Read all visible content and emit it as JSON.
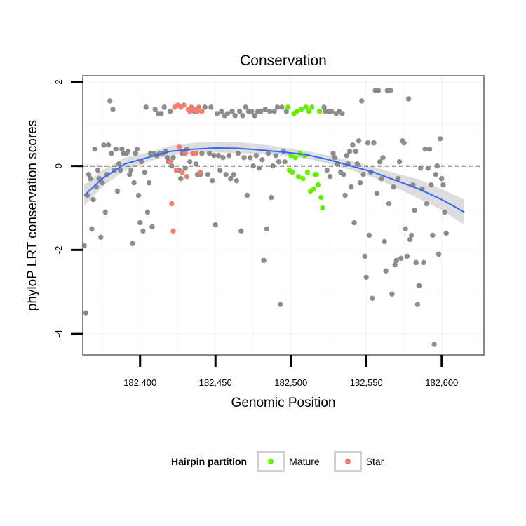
{
  "chart_data": {
    "type": "scatter",
    "title": "Conservation",
    "xlabel": "Genomic Position",
    "ylabel": "phyloP LRT conservation scores",
    "xlim": [
      182362,
      182628
    ],
    "ylim": [
      -4.5,
      2.15
    ],
    "x_ticks": [
      182400,
      182450,
      182500,
      182550,
      182600
    ],
    "x_tick_labels": [
      "182,400",
      "182,450",
      "182,500",
      "182,550",
      "182,600"
    ],
    "y_ticks": [
      2,
      0,
      -2,
      -4
    ],
    "y_tick_labels": [
      "2",
      "0",
      "-2",
      "-4"
    ],
    "reference_line": {
      "y": 0,
      "style": "dashed"
    },
    "grid": true,
    "legend": {
      "title": "Hairpin partition",
      "placement": "bottom",
      "entries": [
        {
          "label": "Mature",
          "color": "#66ee00"
        },
        {
          "label": "Star",
          "color": "#f07f72"
        }
      ]
    },
    "colors": {
      "other": "#8c8c8c",
      "mature": "#66ee00",
      "star": "#f07f72",
      "smooth": "#3366ff",
      "band": "#d9d9d9"
    },
    "series": [
      {
        "name": "Other",
        "points": [
          [
            182363,
            -1.9
          ],
          [
            182364,
            -3.5
          ],
          [
            182365,
            -0.7
          ],
          [
            182366,
            -0.2
          ],
          [
            182367,
            -0.3
          ],
          [
            182368,
            -1.5
          ],
          [
            182369,
            -0.8
          ],
          [
            182370,
            0.4
          ],
          [
            182371,
            -0.5
          ],
          [
            182372,
            -0.1
          ],
          [
            182373,
            -0.3
          ],
          [
            182374,
            -1.7
          ],
          [
            182375,
            -0.4
          ],
          [
            182376,
            0.5
          ],
          [
            182377,
            -1.1
          ],
          [
            182378,
            -0.2
          ],
          [
            182379,
            0.5
          ],
          [
            182380,
            1.55
          ],
          [
            182381,
            0.3
          ],
          [
            182382,
            1.35
          ],
          [
            182383,
            -0.1
          ],
          [
            182384,
            0.4
          ],
          [
            182385,
            -0.6
          ],
          [
            182386,
            0.05
          ],
          [
            182387,
            -0.1
          ],
          [
            182388,
            0.4
          ],
          [
            182389,
            0.3
          ],
          [
            182390,
            0.3
          ],
          [
            182391,
            0.3
          ],
          [
            182392,
            0.35
          ],
          [
            182393,
            -0.2
          ],
          [
            182394,
            -0.1
          ],
          [
            182395,
            -1.85
          ],
          [
            182396,
            -0.4
          ],
          [
            182397,
            0.3
          ],
          [
            182398,
            0.4
          ],
          [
            182399,
            -0.7
          ],
          [
            182400,
            -1.35
          ],
          [
            182401,
            0.1
          ],
          [
            182402,
            -1.55
          ],
          [
            182403,
            -0.15
          ],
          [
            182404,
            1.4
          ],
          [
            182405,
            -1.1
          ],
          [
            182406,
            -0.4
          ],
          [
            182407,
            0.3
          ],
          [
            182408,
            -1.45
          ],
          [
            182409,
            0.3
          ],
          [
            182410,
            1.35
          ],
          [
            182411,
            0.25
          ],
          [
            182412,
            1.25
          ],
          [
            182413,
            0.3
          ],
          [
            182414,
            1.25
          ],
          [
            182415,
            0.3
          ],
          [
            182416,
            1.4
          ],
          [
            182417,
            0.35
          ],
          [
            182418,
            0.2
          ],
          [
            182419,
            0.1
          ],
          [
            182420,
            1.3
          ],
          [
            182421,
            0.0
          ],
          [
            182422,
            0.2
          ],
          [
            182426,
            -0.1
          ],
          [
            182427,
            -0.3
          ],
          [
            182428,
            0.3
          ],
          [
            182430,
            -0.05
          ],
          [
            182431,
            0.4
          ],
          [
            182433,
            0.1
          ],
          [
            182436,
            1.3
          ],
          [
            182437,
            0.05
          ],
          [
            182438,
            -0.2
          ],
          [
            182440,
            -0.2
          ],
          [
            182441,
            0.3
          ],
          [
            182443,
            1.4
          ],
          [
            182445,
            -0.2
          ],
          [
            182446,
            0.3
          ],
          [
            182447,
            1.4
          ],
          [
            182448,
            -0.35
          ],
          [
            182449,
            0.25
          ],
          [
            182450,
            -1.4
          ],
          [
            182451,
            1.25
          ],
          [
            182452,
            0.25
          ],
          [
            182453,
            -0.1
          ],
          [
            182454,
            1.3
          ],
          [
            182455,
            0.2
          ],
          [
            182456,
            1.2
          ],
          [
            182457,
            -0.2
          ],
          [
            182458,
            1.25
          ],
          [
            182459,
            0.25
          ],
          [
            182460,
            -0.3
          ],
          [
            182461,
            1.3
          ],
          [
            182462,
            -0.2
          ],
          [
            182463,
            1.2
          ],
          [
            182464,
            -0.35
          ],
          [
            182465,
            0.3
          ],
          [
            182466,
            1.3
          ],
          [
            182467,
            -1.55
          ],
          [
            182468,
            1.2
          ],
          [
            182469,
            0.2
          ],
          [
            182470,
            1.4
          ],
          [
            182471,
            -0.7
          ],
          [
            182472,
            1.3
          ],
          [
            182473,
            0.2
          ],
          [
            182474,
            1.3
          ],
          [
            182475,
            0.0
          ],
          [
            182476,
            1.2
          ],
          [
            182477,
            0.25
          ],
          [
            182478,
            1.3
          ],
          [
            182479,
            -0.05
          ],
          [
            182480,
            1.3
          ],
          [
            182481,
            0.15
          ],
          [
            182482,
            -2.25
          ],
          [
            182483,
            1.35
          ],
          [
            182484,
            -1.5
          ],
          [
            182485,
            0.3
          ],
          [
            182486,
            1.3
          ],
          [
            182487,
            -0.75
          ],
          [
            182488,
            0.0
          ],
          [
            182489,
            1.3
          ],
          [
            182490,
            0.25
          ],
          [
            182491,
            1.4
          ],
          [
            182492,
            0.1
          ],
          [
            182493,
            -3.3
          ],
          [
            182494,
            1.4
          ],
          [
            182495,
            0.35
          ],
          [
            182496,
            0.1
          ],
          [
            182497,
            1.3
          ],
          [
            182522,
            1.4
          ],
          [
            182523,
            1.3
          ],
          [
            182524,
            -0.1
          ],
          [
            182525,
            1.3
          ],
          [
            182526,
            -0.25
          ],
          [
            182527,
            1.3
          ],
          [
            182528,
            0.3
          ],
          [
            182529,
            0.2
          ],
          [
            182530,
            1.25
          ],
          [
            182531,
            0.05
          ],
          [
            182532,
            1.3
          ],
          [
            182533,
            -0.15
          ],
          [
            182534,
            1.25
          ],
          [
            182535,
            -0.2
          ],
          [
            182536,
            -0.7
          ],
          [
            182537,
            0.25
          ],
          [
            182538,
            0.05
          ],
          [
            182539,
            0.35
          ],
          [
            182540,
            -0.5
          ],
          [
            182541,
            0.5
          ],
          [
            182542,
            -1.35
          ],
          [
            182543,
            0.35
          ],
          [
            182544,
            0.05
          ],
          [
            182545,
            0.6
          ],
          [
            182546,
            -0.4
          ],
          [
            182547,
            1.55
          ],
          [
            182548,
            -0.2
          ],
          [
            182549,
            -2.15
          ],
          [
            182550,
            -2.65
          ],
          [
            182551,
            0.55
          ],
          [
            182552,
            -1.65
          ],
          [
            182553,
            -0.15
          ],
          [
            182554,
            -3.15
          ],
          [
            182555,
            0.55
          ],
          [
            182556,
            1.8
          ],
          [
            182557,
            -0.65
          ],
          [
            182558,
            1.8
          ],
          [
            182559,
            0.1
          ],
          [
            182560,
            -0.3
          ],
          [
            182561,
            0.2
          ],
          [
            182562,
            -1.8
          ],
          [
            182563,
            -2.5
          ],
          [
            182564,
            1.8
          ],
          [
            182565,
            -0.9
          ],
          [
            182566,
            1.8
          ],
          [
            182567,
            -3.05
          ],
          [
            182568,
            -0.5
          ],
          [
            182569,
            -2.35
          ],
          [
            182570,
            -2.25
          ],
          [
            182571,
            -0.3
          ],
          [
            182572,
            0.1
          ],
          [
            182573,
            -2.2
          ],
          [
            182574,
            0.6
          ],
          [
            182575,
            0.55
          ],
          [
            182576,
            -1.5
          ],
          [
            182577,
            -2.15
          ],
          [
            182578,
            1.6
          ],
          [
            182579,
            -1.75
          ],
          [
            182580,
            -1.65
          ],
          [
            182581,
            -0.45
          ],
          [
            182582,
            -1.05
          ],
          [
            182583,
            -2.3
          ],
          [
            182584,
            -3.3
          ],
          [
            182585,
            -2.85
          ],
          [
            182586,
            -0.05
          ],
          [
            182587,
            -0.55
          ],
          [
            182588,
            -2.3
          ],
          [
            182589,
            0.4
          ],
          [
            182590,
            -0.9
          ],
          [
            182591,
            -0.05
          ],
          [
            182592,
            0.4
          ],
          [
            182593,
            -0.45
          ],
          [
            182594,
            -1.65
          ],
          [
            182595,
            -4.25
          ],
          [
            182596,
            -0.2
          ],
          [
            182597,
            0.0
          ],
          [
            182598,
            -2.1
          ],
          [
            182599,
            0.65
          ],
          [
            182600,
            -0.3
          ],
          [
            182601,
            -0.45
          ],
          [
            182602,
            -1.1
          ],
          [
            182603,
            -1.6
          ]
        ]
      },
      {
        "name": "Mature",
        "points": [
          [
            182498,
            1.4
          ],
          [
            182499,
            -0.1
          ],
          [
            182500,
            0.25
          ],
          [
            182501,
            -0.15
          ],
          [
            182502,
            1.25
          ],
          [
            182503,
            0.2
          ],
          [
            182504,
            1.3
          ],
          [
            182505,
            -0.25
          ],
          [
            182506,
            0.3
          ],
          [
            182507,
            1.35
          ],
          [
            182508,
            -0.3
          ],
          [
            182509,
            0.25
          ],
          [
            182510,
            1.4
          ],
          [
            182511,
            -0.15
          ],
          [
            182512,
            1.3
          ],
          [
            182513,
            -0.6
          ],
          [
            182514,
            1.4
          ],
          [
            182515,
            -0.55
          ],
          [
            182516,
            -0.2
          ],
          [
            182517,
            -0.2
          ],
          [
            182518,
            -0.45
          ],
          [
            182519,
            1.3
          ],
          [
            182520,
            -0.75
          ],
          [
            182521,
            -1.0
          ]
        ]
      },
      {
        "name": "Star",
        "points": [
          [
            182420,
            0.1
          ],
          [
            182421,
            -0.9
          ],
          [
            182422,
            -1.55
          ],
          [
            182423,
            1.4
          ],
          [
            182424,
            -0.1
          ],
          [
            182425,
            1.45
          ],
          [
            182426,
            0.45
          ],
          [
            182427,
            1.4
          ],
          [
            182428,
            -0.15
          ],
          [
            182429,
            1.45
          ],
          [
            182430,
            0.3
          ],
          [
            182431,
            -0.25
          ],
          [
            182432,
            1.35
          ],
          [
            182433,
            1.3
          ],
          [
            182434,
            1.4
          ],
          [
            182435,
            0.3
          ],
          [
            182436,
            1.35
          ],
          [
            182437,
            0.3
          ],
          [
            182438,
            1.3
          ],
          [
            182439,
            1.4
          ],
          [
            182440,
            -0.15
          ],
          [
            182441,
            1.3
          ]
        ]
      }
    ],
    "smooth": {
      "method": "loess",
      "x": [
        182363,
        182375,
        182390,
        182405,
        182420,
        182435,
        182450,
        182465,
        182480,
        182495,
        182510,
        182525,
        182540,
        182555,
        182570,
        182585,
        182600,
        182615
      ],
      "y": [
        -0.7,
        -0.3,
        0.05,
        0.2,
        0.35,
        0.4,
        0.43,
        0.42,
        0.38,
        0.33,
        0.27,
        0.15,
        0.0,
        -0.15,
        -0.35,
        -0.55,
        -0.8,
        -1.1
      ],
      "lower": [
        -0.95,
        -0.5,
        -0.1,
        0.1,
        0.25,
        0.3,
        0.32,
        0.31,
        0.28,
        0.25,
        0.18,
        0.05,
        -0.1,
        -0.28,
        -0.52,
        -0.78,
        -1.05,
        -1.4
      ],
      "upper": [
        -0.45,
        -0.1,
        0.2,
        0.32,
        0.48,
        0.55,
        0.58,
        0.57,
        0.52,
        0.44,
        0.36,
        0.25,
        0.12,
        -0.02,
        -0.18,
        -0.32,
        -0.55,
        -0.8
      ]
    }
  }
}
